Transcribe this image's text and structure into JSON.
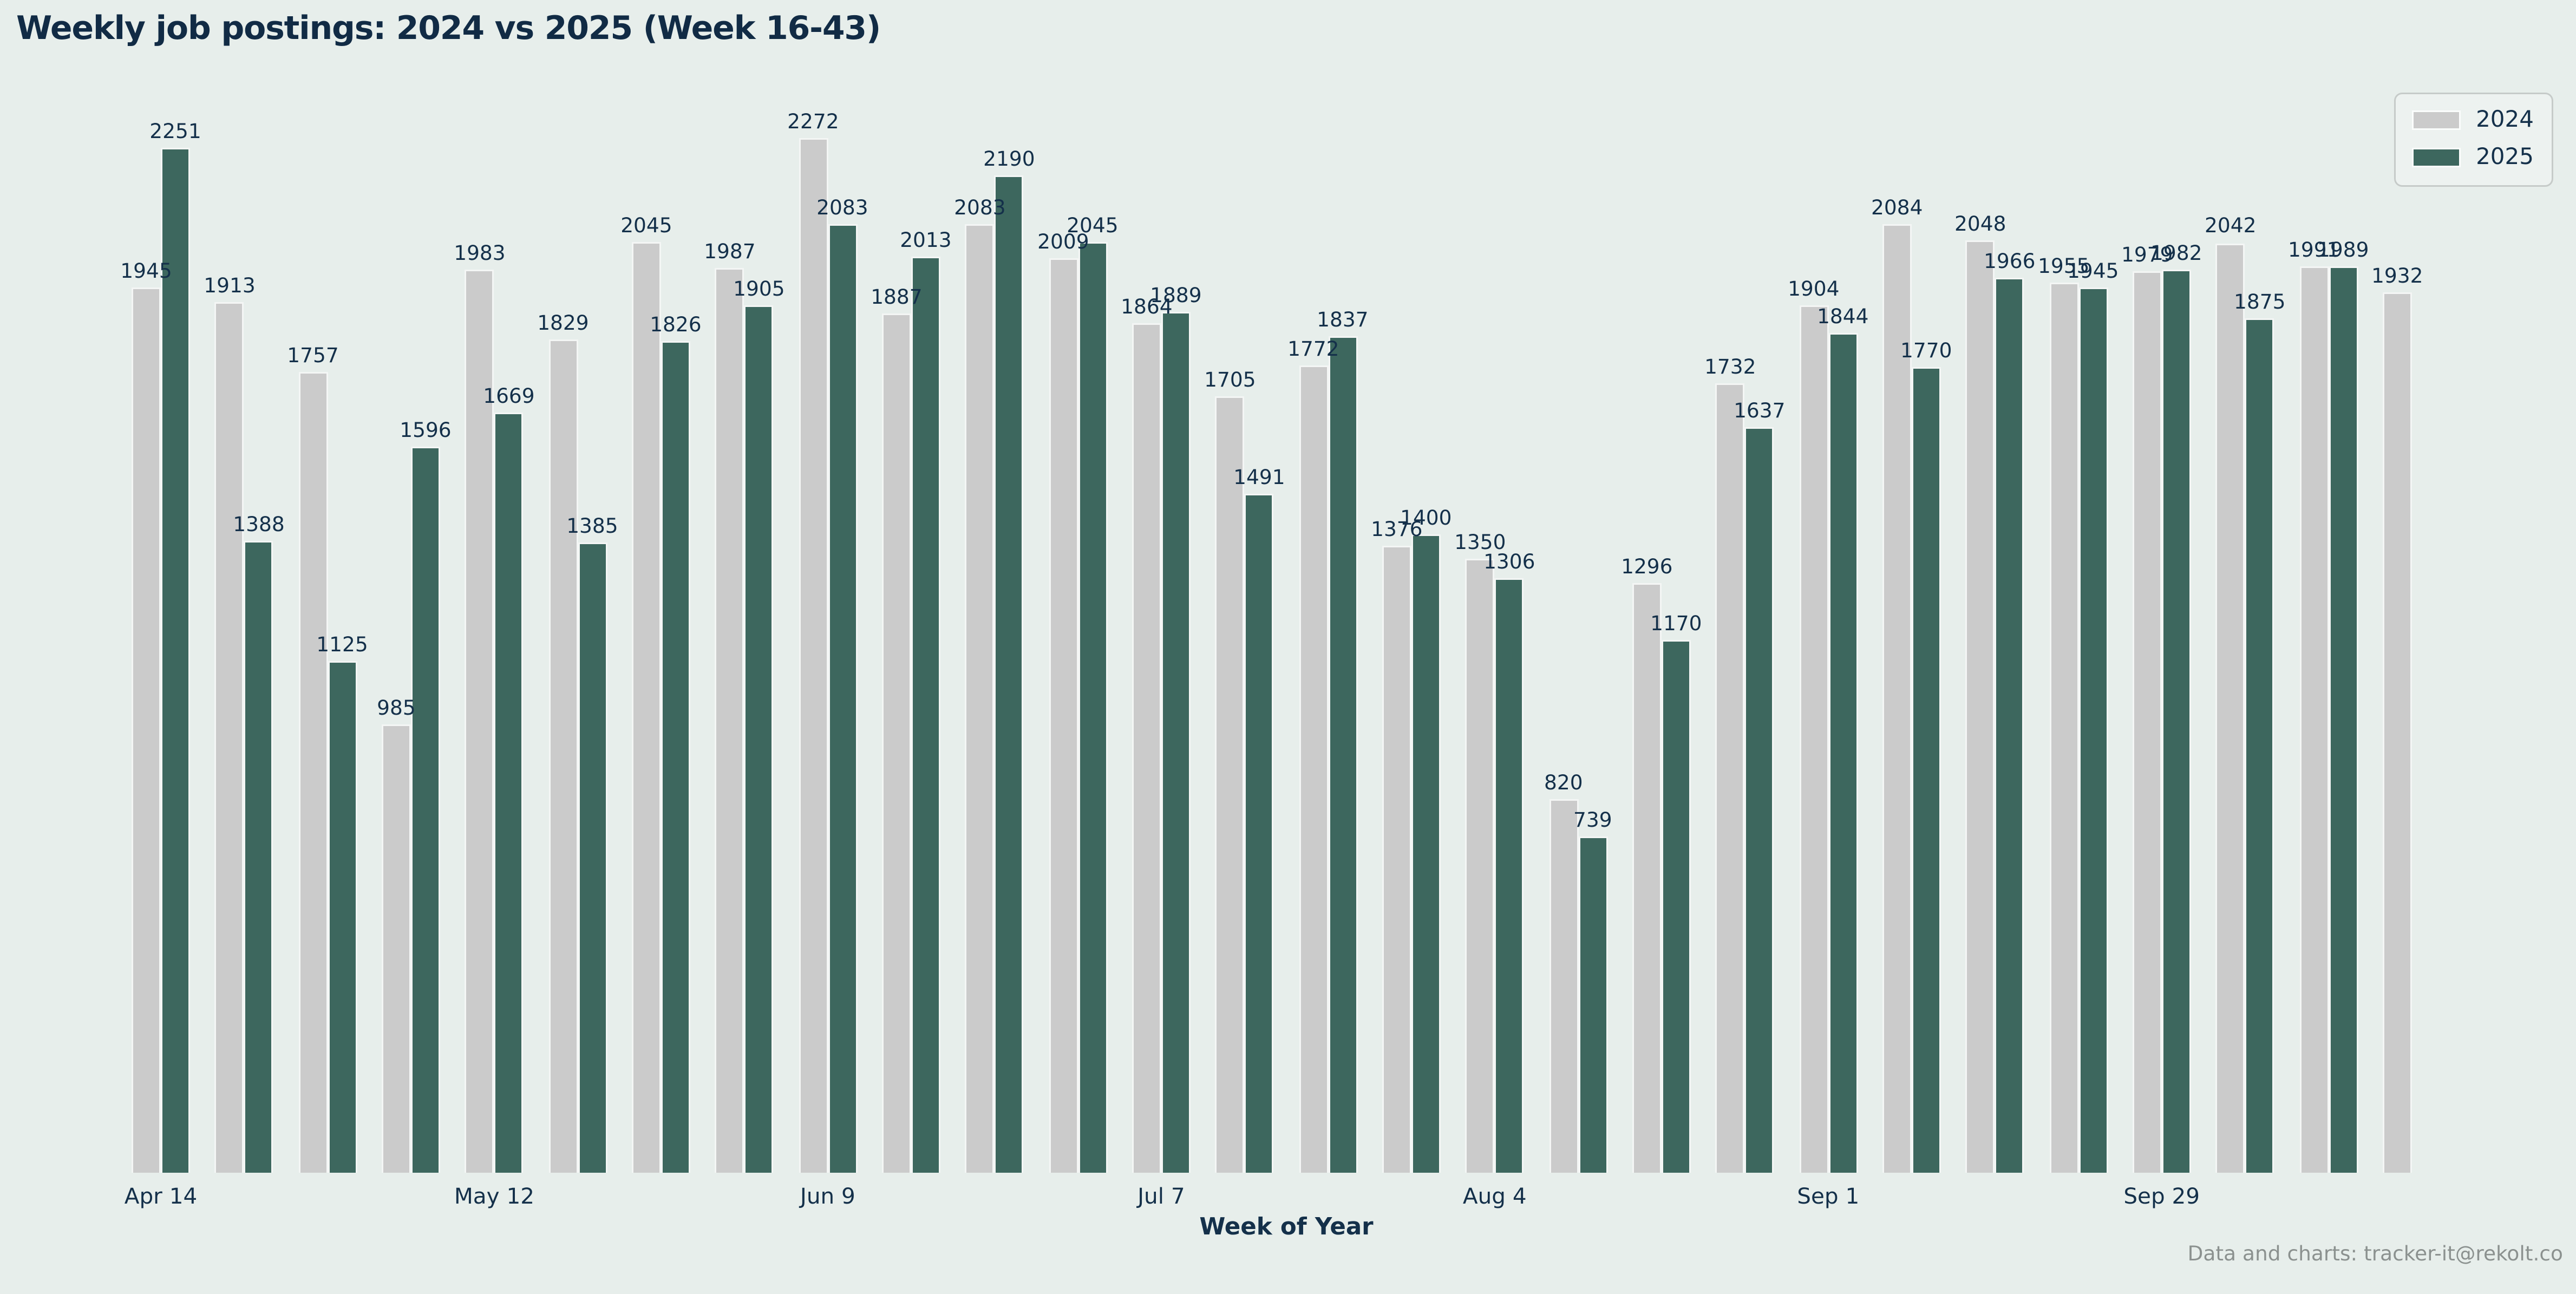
{
  "page": {
    "background": "#e7eeeb"
  },
  "header": {
    "title": "Weekly job postings: 2024 vs 2025 (Week 16-43)"
  },
  "legend": {
    "items": [
      {
        "label": "2024",
        "color": "#cbcbcb"
      },
      {
        "label": "2025",
        "color": "#3d675e"
      }
    ]
  },
  "footer": {
    "credit": "Data and charts: tracker-it@rekolt.co"
  },
  "chart_data": {
    "type": "bar",
    "title": "Weekly job postings: 2024 vs 2025 (Week 16-43)",
    "xlabel": "Week of Year",
    "ylabel": "",
    "grid": false,
    "legend_position": "upper right",
    "value_labels_shown": true,
    "n_groups": 28,
    "ylim": [
      0,
      2272
    ],
    "series": [
      {
        "name": "2024",
        "color": "#cbcbcb",
        "values": [
          1945,
          1913,
          1757,
          985,
          1983,
          1829,
          2045,
          1987,
          2272,
          1887,
          2083,
          2009,
          1864,
          1705,
          1772,
          1376,
          1350,
          820,
          1296,
          1732,
          1904,
          2084,
          2048,
          1955,
          1979,
          2042,
          1991,
          1932
        ]
      },
      {
        "name": "2025",
        "color": "#3d675e",
        "values": [
          2251,
          1388,
          1125,
          1596,
          1669,
          1385,
          1826,
          1905,
          2083,
          2013,
          2190,
          2045,
          1889,
          1491,
          1837,
          1400,
          1306,
          739,
          1170,
          1637,
          1844,
          1770,
          1966,
          1945,
          1982,
          1875,
          1989,
          null
        ]
      }
    ],
    "x_ticks": [
      {
        "group_index": 0,
        "label": "Apr 14"
      },
      {
        "group_index": 4,
        "label": "May 12"
      },
      {
        "group_index": 8,
        "label": "Jun 9"
      },
      {
        "group_index": 12,
        "label": "Jul 7"
      },
      {
        "group_index": 16,
        "label": "Aug 4"
      },
      {
        "group_index": 20,
        "label": "Sep 1"
      },
      {
        "group_index": 24,
        "label": "Sep 29"
      }
    ]
  }
}
